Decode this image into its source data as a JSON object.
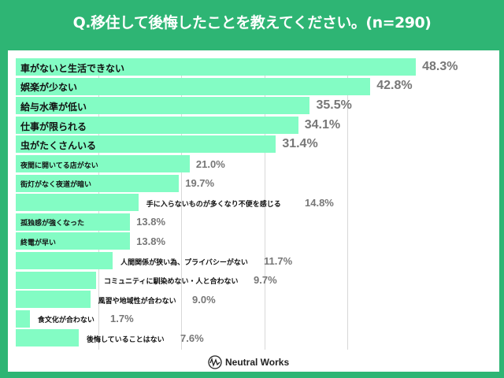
{
  "colors": {
    "background": "#2eb574",
    "bar": "#83fcc4",
    "value_text": "#777777",
    "gridline": "#d8d8d8"
  },
  "chart_data": {
    "type": "bar",
    "orientation": "horizontal",
    "title": "Q.移住して後悔したことを教えてください。(n=290)",
    "unit": "%",
    "xlim": [
      0,
      50
    ],
    "grid": true,
    "categories": [
      "車がないと生活できない",
      "娯楽が少ない",
      "給与水準が低い",
      "仕事が限られる",
      "虫がたくさんいる",
      "夜間に開いてる店がない",
      "街灯がなく夜道が暗い",
      "手に入らないものが多くなり不便を感じる",
      "孤独感が強くなった",
      "終電が早い",
      "人間関係が狭い為、プライバシーがない",
      "コミュニティに馴染めない・人と合わない",
      "風習や地域性が合わない",
      "食文化が合わない",
      "後悔していることはない"
    ],
    "values": [
      48.3,
      42.8,
      35.5,
      34.1,
      31.4,
      21.0,
      19.7,
      14.8,
      13.8,
      13.8,
      11.7,
      9.7,
      9.0,
      1.7,
      7.6
    ],
    "value_labels": [
      "48.3%",
      "42.8%",
      "35.5%",
      "34.1%",
      "31.4%",
      "21.0%",
      "19.7%",
      "14.8%",
      "13.8%",
      "13.8%",
      "11.7%",
      "9.7%",
      "9.0%",
      "1.7%",
      "7.6%"
    ],
    "label_position": [
      "inside",
      "inside",
      "inside",
      "inside",
      "inside",
      "inside",
      "inside",
      "outside",
      "inside",
      "inside",
      "outside",
      "outside",
      "outside",
      "outside",
      "outside"
    ]
  },
  "footer": {
    "logo_text": "Neutral Works"
  }
}
